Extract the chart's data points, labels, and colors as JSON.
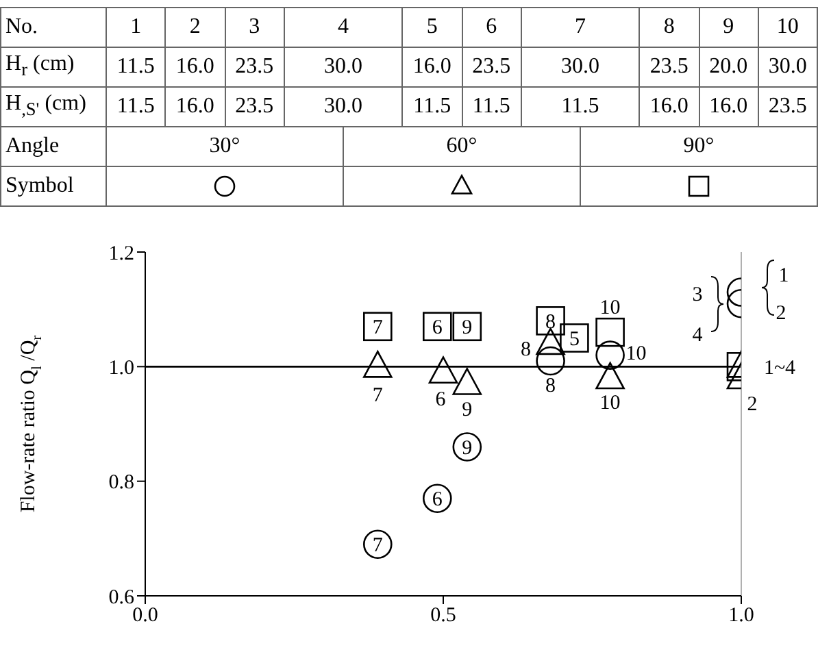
{
  "chart_data": {
    "type": "scatter",
    "ylabel": "Flow-rate ratio Q$_{l}$ /Q$_{r}$",
    "annotations": [
      "No.",
      "1",
      "2",
      "3",
      "4",
      "5",
      "6",
      "7",
      "8",
      "9",
      "10",
      "H$_{r}$ (cm)",
      "11.5",
      "16.0",
      "23.5",
      "30.0",
      "16.0",
      "23.5",
      "30.0",
      "23.5",
      "20.0",
      "30.0",
      "H$_{,S'}$ (cm)",
      "11.5",
      "16.0",
      "23.5",
      "30.0",
      "11.5",
      "11.5",
      "11.5",
      "16.0",
      "16.0",
      "23.5",
      "Angle",
      "30°",
      "60°",
      "90°",
      "Symbol",
      {
        "text": "7",
        "x": 0.39,
        "y": 0.69
      },
      {
        "text": "6",
        "x": 0.49,
        "y": 0.77
      },
      {
        "text": "9",
        "x": 0.54,
        "y": 0.86
      },
      {
        "text": "8",
        "x": 0.68,
        "y": 1.01
      },
      {
        "text": "10",
        "x": 0.78,
        "y": 1.02
      },
      {
        "text": "1",
        "x": 1.0,
        "y": 1.13
      },
      {
        "text": "2",
        "x": 1.0,
        "y": 1.11
      },
      {
        "text": "3",
        "x": 1.0,
        "y": 1.13
      },
      {
        "text": "4",
        "x": 1.0,
        "y": 1.11
      },
      {
        "text": "7",
        "x": 0.39,
        "y": 1.0
      },
      {
        "text": "6",
        "x": 0.5,
        "y": 0.99
      },
      {
        "text": "9",
        "x": 0.54,
        "y": 0.97
      },
      {
        "text": "8",
        "x": 0.68,
        "y": 1.04
      },
      {
        "text": "10",
        "x": 0.78,
        "y": 0.98
      },
      {
        "text": "1~4",
        "x": 1.0,
        "y": 1.0
      },
      {
        "text": "2",
        "x": 1.0,
        "y": 0.98
      },
      {
        "text": "7",
        "x": 0.39,
        "y": 1.07
      },
      {
        "text": "6",
        "x": 0.49,
        "y": 1.07
      },
      {
        "text": "9",
        "x": 0.54,
        "y": 1.07
      },
      {
        "text": "8",
        "x": 0.68,
        "y": 1.08
      },
      {
        "text": "5",
        "x": 0.72,
        "y": 1.05
      },
      {
        "text": "10",
        "x": 0.78,
        "y": 1.06
      }
    ],
    "series": [
      {
        "marker": "circle",
        "color": "#000000",
        "x": [
          0.39,
          0.49,
          0.54,
          0.68,
          0.78,
          1.0,
          1.0
        ],
        "values": [
          0.69,
          0.77,
          0.86,
          1.01,
          1.02,
          1.13,
          1.11
        ]
      },
      {
        "marker": "triangle",
        "color": "#000000",
        "x": [
          0.39,
          0.5,
          0.54,
          0.68,
          0.78,
          1.0,
          1.0
        ],
        "values": [
          1.0,
          0.99,
          0.97,
          1.04,
          0.98,
          1.0,
          0.98
        ]
      },
      {
        "marker": "square",
        "color": "#000000",
        "x": [
          0.39,
          0.49,
          0.54,
          0.68,
          0.72,
          0.78,
          1.0
        ],
        "values": [
          1.07,
          1.07,
          1.07,
          1.08,
          1.05,
          1.06,
          1.0
        ]
      }
    ],
    "xlim": [
      0,
      1.0
    ],
    "xticks": [
      {
        "value": 0,
        "label": "0.0"
      },
      {
        "value": 0.5,
        "label": "0.5"
      },
      {
        "value": 1.0,
        "label": "1.0"
      }
    ],
    "ylim": [
      0.6,
      1.2
    ],
    "yticks": [
      0.6,
      0.8,
      {
        "value": 1.0,
        "label": "1.0"
      },
      1.2
    ],
    "ref_lines": [
      {
        "axis": "y",
        "value": 1.0,
        "color": "#000000"
      },
      {
        "axis": "x",
        "value": 1.0,
        "color": "#b0b0b0"
      }
    ]
  }
}
